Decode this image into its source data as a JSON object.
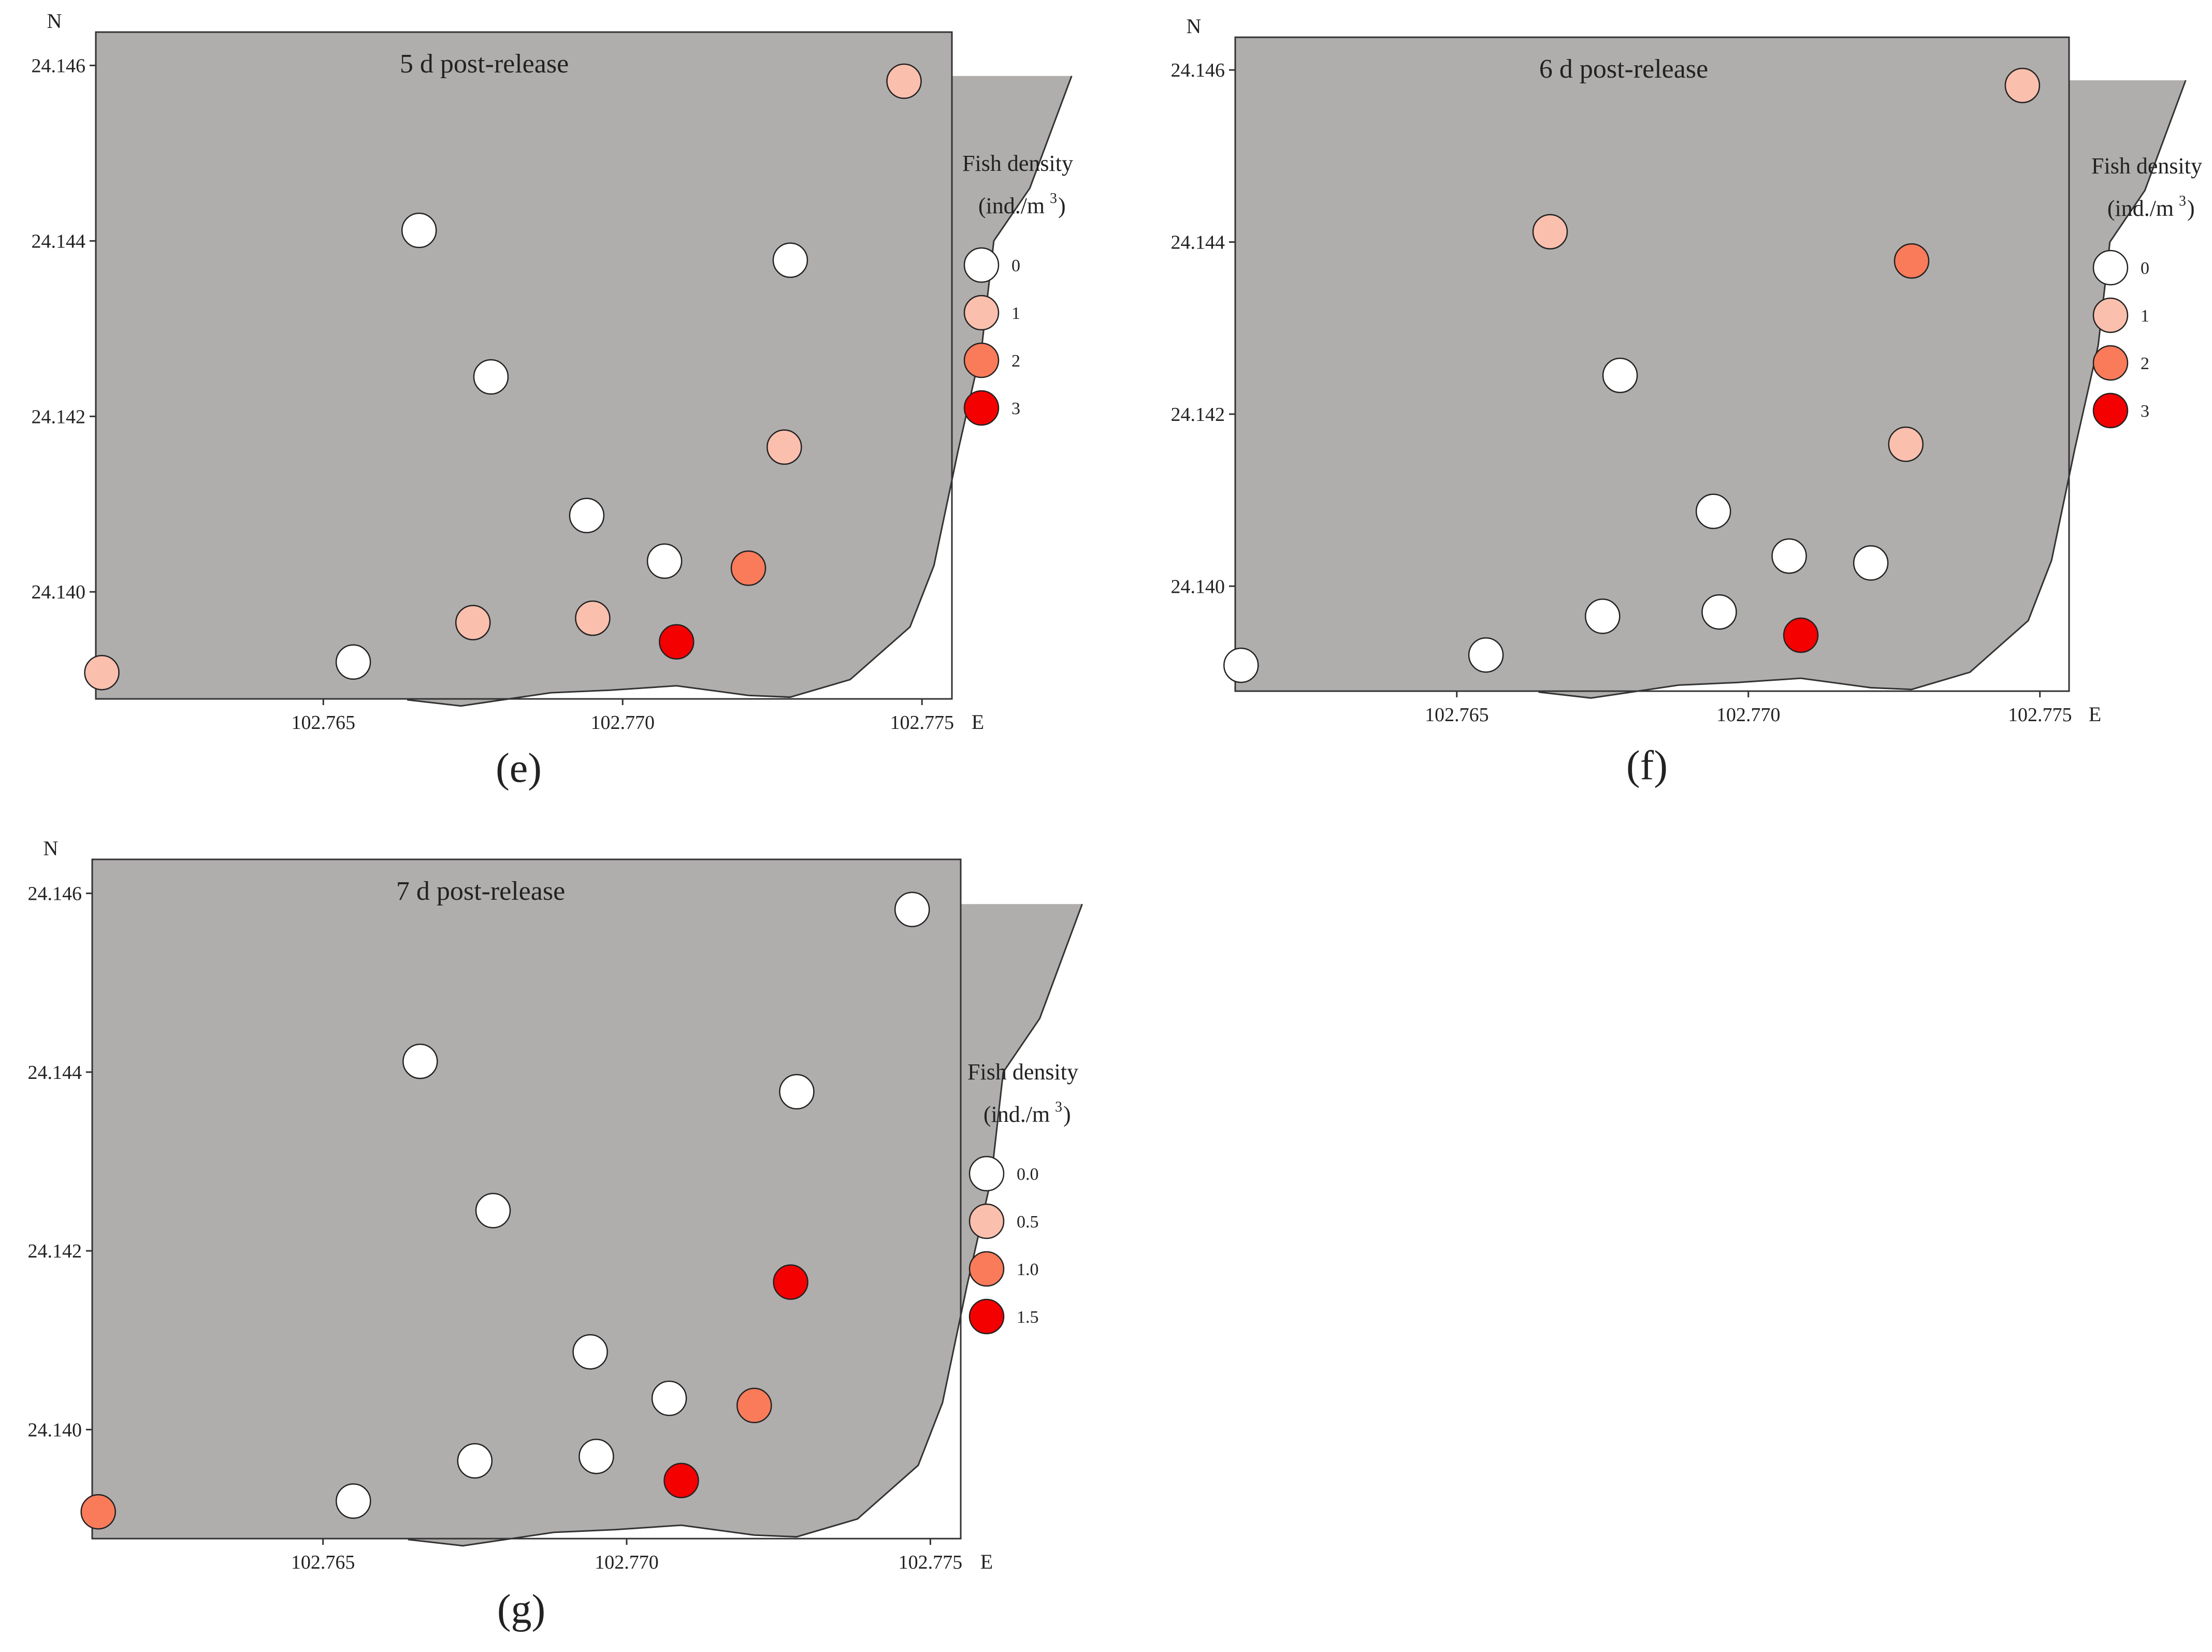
{
  "figure": {
    "coast_outline": [
      [
        102.7775,
        24.14588
      ],
      [
        102.7768,
        24.1446
      ],
      [
        102.7762,
        24.144
      ],
      [
        102.776,
        24.1428
      ],
      [
        102.7756,
        24.1416
      ],
      [
        102.7752,
        24.1403
      ],
      [
        102.7748,
        24.1396
      ],
      [
        102.7738,
        24.139
      ],
      [
        102.7728,
        24.1388
      ],
      [
        102.7721,
        24.13882
      ],
      [
        102.7709,
        24.13893
      ],
      [
        102.7698,
        24.13888
      ],
      [
        102.7688,
        24.13885
      ],
      [
        102.7673,
        24.1387
      ],
      [
        102.7664,
        24.13877
      ]
    ],
    "panels": [
      {
        "id": "e",
        "label": "(e)",
        "title": "5 d post-release",
        "north_label": "N",
        "east_label": "E",
        "legend_title_line1": "Fish density",
        "legend_title_line2": "(ind./m",
        "legend_title_sup": "3",
        "legend_title_close": ")",
        "legend_entries": [
          "0",
          "1",
          "2",
          "3"
        ]
      },
      {
        "id": "f",
        "label": "(f)",
        "title": "6 d post-release",
        "north_label": "N",
        "east_label": "E",
        "legend_title_line1": "Fish density",
        "legend_title_line2": "(ind./m",
        "legend_title_sup": "3",
        "legend_title_close": ")",
        "legend_entries": [
          "0",
          "1",
          "2",
          "3"
        ]
      },
      {
        "id": "g",
        "label": "(g)",
        "title": "7 d post-release",
        "north_label": "N",
        "east_label": "E",
        "legend_title_line1": "Fish density",
        "legend_title_line2": "(ind./m",
        "legend_title_sup": "3",
        "legend_title_close": ")",
        "legend_entries": [
          "0.0",
          "0.5",
          "1.0",
          "1.5"
        ]
      }
    ]
  },
  "chart_data": [
    {
      "type": "scatter",
      "title": "5 d post-release",
      "panel": "(e)",
      "xlabel": "E",
      "ylabel": "N",
      "xlim": [
        102.7612,
        102.7755
      ],
      "ylim": [
        24.13878,
        24.14638
      ],
      "x_ticks": [
        "102.765",
        "102.770",
        "102.775"
      ],
      "y_ticks": [
        "24.140",
        "24.142",
        "24.144",
        "24.146"
      ],
      "legend": {
        "title": "Fish density (ind./m3)",
        "levels": [
          0,
          1,
          2,
          3
        ],
        "colors": [
          "#ffffff",
          "#fbbfae",
          "#f97b5a",
          "#f40000"
        ]
      },
      "points": [
        {
          "x": 102.7747,
          "y": 24.14582,
          "value": 1
        },
        {
          "x": 102.7666,
          "y": 24.14412,
          "value": 0
        },
        {
          "x": 102.7728,
          "y": 24.14378,
          "value": 0
        },
        {
          "x": 102.7678,
          "y": 24.14245,
          "value": 0
        },
        {
          "x": 102.7727,
          "y": 24.14165,
          "value": 1
        },
        {
          "x": 102.7694,
          "y": 24.14087,
          "value": 0
        },
        {
          "x": 102.7707,
          "y": 24.14035,
          "value": 0
        },
        {
          "x": 102.7721,
          "y": 24.14027,
          "value": 2
        },
        {
          "x": 102.7675,
          "y": 24.13965,
          "value": 1
        },
        {
          "x": 102.7695,
          "y": 24.1397,
          "value": 1
        },
        {
          "x": 102.7709,
          "y": 24.13943,
          "value": 3
        },
        {
          "x": 102.7655,
          "y": 24.1392,
          "value": 0
        },
        {
          "x": 102.7613,
          "y": 24.13908,
          "value": 1
        }
      ]
    },
    {
      "type": "scatter",
      "title": "6 d post-release",
      "panel": "(f)",
      "xlabel": "E",
      "ylabel": "N",
      "xlim": [
        102.7612,
        102.7755
      ],
      "ylim": [
        24.13878,
        24.14638
      ],
      "x_ticks": [
        "102.765",
        "102.770",
        "102.775"
      ],
      "y_ticks": [
        "24.140",
        "24.142",
        "24.144",
        "24.146"
      ],
      "legend": {
        "title": "Fish density (ind./m3)",
        "levels": [
          0,
          1,
          2,
          3
        ],
        "colors": [
          "#ffffff",
          "#fbbfae",
          "#f97b5a",
          "#f40000"
        ]
      },
      "points": [
        {
          "x": 102.7747,
          "y": 24.14582,
          "value": 1
        },
        {
          "x": 102.7666,
          "y": 24.14412,
          "value": 1
        },
        {
          "x": 102.7728,
          "y": 24.14378,
          "value": 2
        },
        {
          "x": 102.7678,
          "y": 24.14245,
          "value": 0
        },
        {
          "x": 102.7727,
          "y": 24.14165,
          "value": 1
        },
        {
          "x": 102.7694,
          "y": 24.14087,
          "value": 0
        },
        {
          "x": 102.7707,
          "y": 24.14035,
          "value": 0
        },
        {
          "x": 102.7721,
          "y": 24.14027,
          "value": 0
        },
        {
          "x": 102.7675,
          "y": 24.13965,
          "value": 0
        },
        {
          "x": 102.7695,
          "y": 24.1397,
          "value": 0
        },
        {
          "x": 102.7709,
          "y": 24.13943,
          "value": 3
        },
        {
          "x": 102.7655,
          "y": 24.1392,
          "value": 0
        },
        {
          "x": 102.7613,
          "y": 24.13908,
          "value": 0
        }
      ]
    },
    {
      "type": "scatter",
      "title": "7 d post-release",
      "panel": "(g)",
      "xlabel": "E",
      "ylabel": "N",
      "xlim": [
        102.7612,
        102.7755
      ],
      "ylim": [
        24.13878,
        24.14638
      ],
      "x_ticks": [
        "102.765",
        "102.770",
        "102.775"
      ],
      "y_ticks": [
        "24.140",
        "24.142",
        "24.144",
        "24.146"
      ],
      "legend": {
        "title": "Fish density (ind./m3)",
        "levels": [
          0.0,
          0.5,
          1.0,
          1.5
        ],
        "colors": [
          "#ffffff",
          "#fbbfae",
          "#f97b5a",
          "#f40000"
        ]
      },
      "points": [
        {
          "x": 102.7747,
          "y": 24.14582,
          "value": 0
        },
        {
          "x": 102.7666,
          "y": 24.14412,
          "value": 0
        },
        {
          "x": 102.7728,
          "y": 24.14378,
          "value": 0
        },
        {
          "x": 102.7678,
          "y": 24.14245,
          "value": 0
        },
        {
          "x": 102.7727,
          "y": 24.14165,
          "value": 1.5
        },
        {
          "x": 102.7694,
          "y": 24.14087,
          "value": 0
        },
        {
          "x": 102.7707,
          "y": 24.14035,
          "value": 0
        },
        {
          "x": 102.7721,
          "y": 24.14027,
          "value": 1.0
        },
        {
          "x": 102.7675,
          "y": 24.13965,
          "value": 0
        },
        {
          "x": 102.7695,
          "y": 24.1397,
          "value": 0
        },
        {
          "x": 102.7709,
          "y": 24.13943,
          "value": 1.5
        },
        {
          "x": 102.7655,
          "y": 24.1392,
          "value": 0
        },
        {
          "x": 102.7613,
          "y": 24.13908,
          "value": 1.0
        }
      ]
    }
  ],
  "colors": {
    "land": "#b0aead",
    "water": "#ffffff",
    "outline": "#333333"
  }
}
